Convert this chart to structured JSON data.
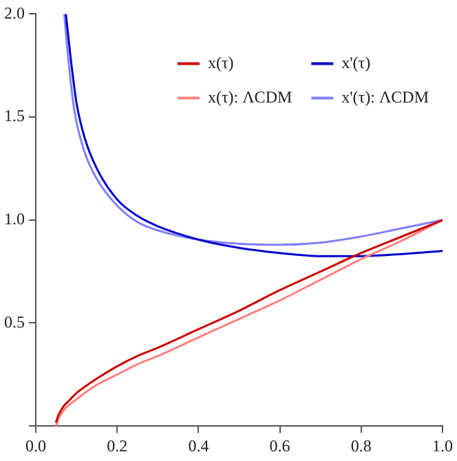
{
  "chart_data": {
    "type": "line",
    "xlim": [
      0,
      1
    ],
    "ylim": [
      0,
      2
    ],
    "xticks": [
      {
        "value": 0,
        "label": "0.0"
      },
      0.2,
      0.4,
      0.6,
      0.8,
      {
        "value": 1,
        "label": "1.0"
      }
    ],
    "yticks": [
      {
        "value": 0,
        "label": null
      },
      0.5,
      {
        "value": 1,
        "label": "1.0"
      },
      1.5,
      {
        "value": 2,
        "label": "2.0"
      }
    ],
    "grid": false,
    "legend": "top right",
    "marker": "none",
    "line_style": "solid",
    "series": [
      {
        "name": "x(τ)",
        "color": "#cc0000",
        "x": [
          0.05,
          0.055,
          0.06,
          0.07,
          0.08,
          0.1,
          0.12,
          0.15,
          0.2,
          0.25,
          0.3,
          0.4,
          0.5,
          0.6,
          0.7,
          0.8,
          0.9,
          1.0
        ],
        "values": [
          0.02,
          0.05,
          0.07,
          0.1,
          0.12,
          0.16,
          0.19,
          0.23,
          0.29,
          0.34,
          0.38,
          0.47,
          0.56,
          0.66,
          0.75,
          0.84,
          0.92,
          1.0
        ]
      },
      {
        "name": "x(τ): ΛCDM",
        "color": "#ff8080",
        "x": [
          0.05,
          0.055,
          0.06,
          0.07,
          0.08,
          0.1,
          0.12,
          0.15,
          0.2,
          0.25,
          0.3,
          0.4,
          0.5,
          0.6,
          0.7,
          0.8,
          0.9,
          1.0
        ],
        "values": [
          0.0,
          0.03,
          0.05,
          0.08,
          0.1,
          0.13,
          0.16,
          0.2,
          0.25,
          0.3,
          0.34,
          0.43,
          0.52,
          0.61,
          0.71,
          0.81,
          0.9,
          1.0
        ]
      },
      {
        "name": "x'(τ)",
        "color": "#0000cc",
        "x": [
          0.074,
          0.085,
          0.1,
          0.12,
          0.15,
          0.2,
          0.25,
          0.3,
          0.4,
          0.5,
          0.6,
          0.7,
          0.8,
          0.9,
          1.0
        ],
        "values": [
          2.0,
          1.8,
          1.57,
          1.4,
          1.25,
          1.1,
          1.02,
          0.97,
          0.905,
          0.865,
          0.84,
          0.825,
          0.825,
          0.835,
          0.85
        ]
      },
      {
        "name": "x'(τ): ΛCDM",
        "color": "#8080ff",
        "x": [
          0.07,
          0.08,
          0.095,
          0.12,
          0.15,
          0.2,
          0.25,
          0.3,
          0.4,
          0.5,
          0.6,
          0.7,
          0.8,
          0.9,
          1.0
        ],
        "values": [
          2.0,
          1.78,
          1.53,
          1.33,
          1.2,
          1.07,
          0.99,
          0.95,
          0.905,
          0.885,
          0.88,
          0.89,
          0.92,
          0.96,
          1.0
        ]
      }
    ]
  }
}
